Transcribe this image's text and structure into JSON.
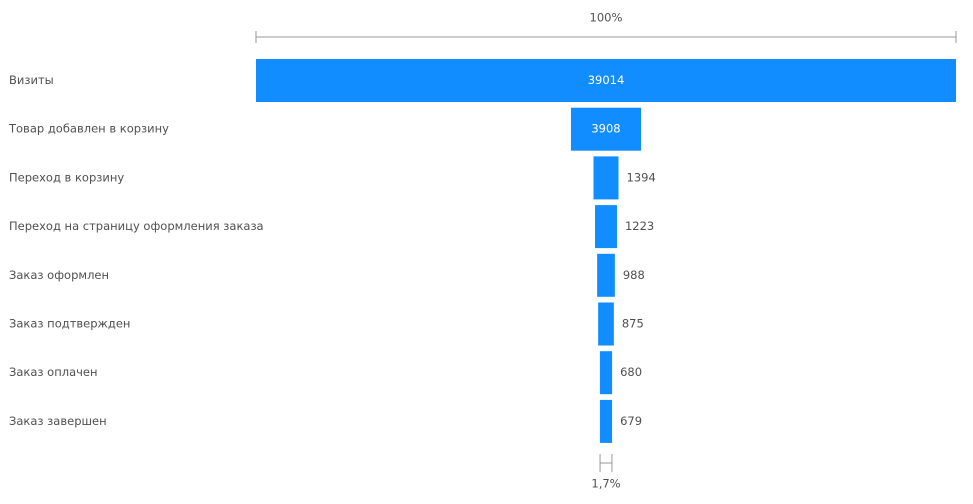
{
  "chart_data": {
    "type": "funnel",
    "categories": [
      "Визиты",
      "Товар добавлен в корзину",
      "Переход в корзину",
      "Переход на страницу оформления заказа",
      "Заказ оформлен",
      "Заказ подтвержден",
      "Заказ оплачен",
      "Заказ завершен"
    ],
    "values": [
      39014,
      3908,
      1394,
      1223,
      988,
      875,
      680,
      679
    ],
    "color": "#118dff",
    "top_percent": {
      "value": 100,
      "label": "100%"
    },
    "bottom_percent": {
      "value": 1.7,
      "label": "1,7%"
    }
  }
}
